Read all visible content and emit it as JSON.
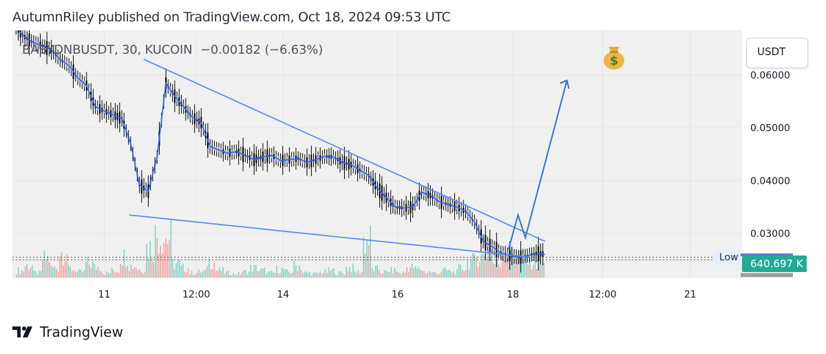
{
  "header": {
    "published_text": "AutumnRiley published on TradingView.com, Oct 18, 2024 09:53 UTC"
  },
  "symbol": {
    "ticker": "BABYDNBUSDT, 30, KUCOIN",
    "change": "−0.00182 (−6.63%)"
  },
  "currency_label": "USDT",
  "low_label": "Low",
  "price_tag": "640.697 K",
  "footer": {
    "brand": "TradingView"
  },
  "colors": {
    "candle": "#000000",
    "ma": "#2962ff",
    "trendline": "#5b8def",
    "forecast": "#2f6fdb",
    "vol_up": "#7fd3c6",
    "vol_down": "#f2a3a3",
    "price_tag": "#22ab94"
  },
  "icons": {
    "moneybag": "moneybag-icon",
    "logo": "tradingview-logo-icon"
  },
  "chart_data": {
    "type": "line",
    "title": "BABYDNBUSDT, 30, KUCOIN",
    "y_axis": {
      "ticks": [
        "0.06000",
        "0.05000",
        "0.04000",
        "0.03000",
        "0.02500"
      ],
      "ylim": [
        0.0215,
        0.0685
      ]
    },
    "x_axis": {
      "ticks": [
        "11",
        "12:00",
        "14",
        "16",
        "18",
        "12:00",
        "21"
      ]
    },
    "series": [
      {
        "values": [
          0.069,
          0.0672,
          0.0662,
          0.0655,
          0.0648,
          0.063,
          0.0618,
          0.0595,
          0.058,
          0.054,
          0.0532,
          0.0525,
          0.0518,
          0.047,
          0.0392,
          0.038,
          0.0445,
          0.0585,
          0.056,
          0.054,
          0.052,
          0.051,
          0.0465,
          0.0458,
          0.0452,
          0.0455,
          0.0448,
          0.044,
          0.0445,
          0.0448,
          0.0438,
          0.044,
          0.0442,
          0.0435,
          0.044,
          0.0446,
          0.0445,
          0.0435,
          0.043,
          0.042,
          0.041,
          0.0385,
          0.0368,
          0.035,
          0.0348,
          0.035,
          0.0378,
          0.0372,
          0.036,
          0.0355,
          0.035,
          0.0342,
          0.0322,
          0.0285,
          0.0275,
          0.0263,
          0.0258,
          0.0255,
          0.0258,
          0.0262,
          0.026
        ]
      }
    ],
    "volume": [
      0.15,
      0.25,
      0.1,
      0.4,
      0.2,
      0.55,
      0.18,
      0.12,
      0.3,
      0.22,
      0.1,
      0.15,
      0.45,
      0.25,
      0.18,
      0.65,
      0.9,
      0.85,
      0.3,
      0.2,
      0.1,
      0.12,
      0.35,
      0.15,
      0.1,
      0.08,
      0.12,
      0.2,
      0.15,
      0.1,
      0.18,
      0.12,
      0.25,
      0.1,
      0.08,
      0.12,
      0.15,
      0.1,
      0.2,
      0.12,
      0.8,
      0.18,
      0.12,
      0.15,
      0.1,
      0.22,
      0.18,
      0.12,
      0.1,
      0.15,
      0.12,
      0.2,
      0.35,
      0.45,
      0.55,
      0.3,
      0.6,
      0.5,
      0.4,
      0.35,
      0.3
    ],
    "trendlines": [
      {
        "from": [
          0.18,
          0.063
        ],
        "to": [
          0.73,
          0.0285
        ]
      },
      {
        "from": [
          0.16,
          0.0335
        ],
        "to": [
          0.71,
          0.0255
        ]
      }
    ],
    "forecast_path": [
      [
        0.68,
        0.027
      ],
      [
        0.693,
        0.0335
      ],
      [
        0.703,
        0.0292
      ],
      [
        0.76,
        0.059
      ]
    ]
  }
}
